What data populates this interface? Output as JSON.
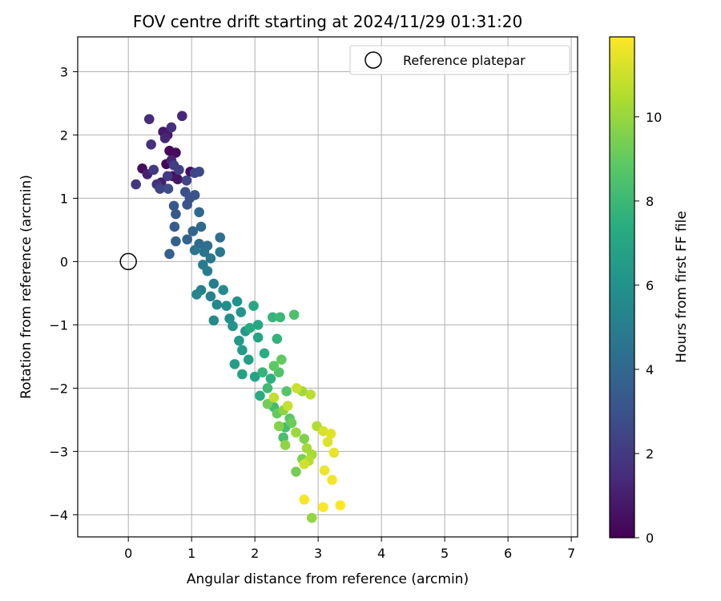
{
  "chart_data": {
    "type": "scatter",
    "title": "FOV centre drift starting at 2024/11/29 01:31:20",
    "xlabel": "Angular distance from reference (arcmin)",
    "ylabel": "Rotation from reference (arcmin)",
    "xlim": [
      -0.8,
      7.1
    ],
    "ylim": [
      -4.35,
      3.55
    ],
    "xticks": [
      0,
      1,
      2,
      3,
      4,
      5,
      6,
      7
    ],
    "yticks": [
      3,
      2,
      1,
      0,
      -1,
      -2,
      -3,
      -4
    ],
    "grid": true,
    "legend": {
      "placement": "top-right",
      "entries": [
        "Reference platepar"
      ]
    },
    "reference_point": {
      "x": 0,
      "y": 0,
      "label": "Reference platepar"
    },
    "colorbar": {
      "label": "Hours from first FF file",
      "range": [
        0,
        11.9
      ],
      "ticks": [
        0,
        2,
        4,
        6,
        8,
        10
      ],
      "colormap": "viridis"
    },
    "series": [
      {
        "points": [
          [
            0.6,
            1.54,
            0.1
          ],
          [
            0.65,
            1.75,
            0.2
          ],
          [
            0.75,
            1.72,
            0.3
          ],
          [
            0.22,
            1.47,
            0.4
          ],
          [
            0.98,
            1.42,
            0.5
          ],
          [
            0.7,
            1.35,
            0.6
          ],
          [
            0.78,
            1.3,
            0.7
          ],
          [
            0.55,
            2.05,
            0.8
          ],
          [
            0.62,
            2.0,
            0.9
          ],
          [
            0.52,
            1.25,
            1.0
          ],
          [
            0.3,
            1.38,
            1.1
          ],
          [
            0.68,
            1.6,
            1.2
          ],
          [
            0.58,
            1.95,
            1.3
          ],
          [
            0.85,
            2.3,
            1.4
          ],
          [
            0.33,
            2.25,
            1.5
          ],
          [
            0.68,
            2.12,
            1.6
          ],
          [
            0.36,
            1.85,
            1.7
          ],
          [
            0.45,
            1.22,
            1.8
          ],
          [
            0.12,
            1.22,
            1.9
          ],
          [
            0.4,
            1.45,
            2.0
          ],
          [
            0.62,
            1.35,
            2.1
          ],
          [
            0.72,
            1.52,
            2.2
          ],
          [
            0.8,
            1.45,
            2.3
          ],
          [
            0.5,
            1.15,
            2.4
          ],
          [
            0.92,
            1.28,
            2.5
          ],
          [
            1.05,
            1.4,
            2.6
          ],
          [
            1.12,
            1.42,
            2.7
          ],
          [
            0.63,
            1.15,
            2.8
          ],
          [
            0.9,
            1.1,
            2.9
          ],
          [
            0.97,
            1.0,
            3.0
          ],
          [
            1.05,
            1.05,
            3.1
          ],
          [
            0.93,
            0.9,
            3.2
          ],
          [
            0.72,
            0.88,
            3.3
          ],
          [
            0.75,
            0.75,
            3.4
          ],
          [
            0.73,
            0.55,
            3.5
          ],
          [
            0.65,
            0.12,
            3.6
          ],
          [
            0.75,
            0.32,
            3.7
          ],
          [
            0.93,
            0.35,
            3.8
          ],
          [
            1.02,
            0.48,
            3.9
          ],
          [
            1.12,
            0.78,
            4.0
          ],
          [
            1.15,
            0.55,
            4.1
          ],
          [
            1.12,
            0.28,
            4.2
          ],
          [
            1.25,
            0.25,
            4.3
          ],
          [
            1.45,
            0.38,
            4.4
          ],
          [
            1.2,
            0.15,
            4.5
          ],
          [
            1.05,
            0.18,
            4.6
          ],
          [
            1.3,
            0.05,
            4.7
          ],
          [
            1.45,
            0.15,
            4.8
          ],
          [
            1.18,
            -0.05,
            4.9
          ],
          [
            1.25,
            -0.15,
            5.0
          ],
          [
            1.35,
            -0.35,
            5.1
          ],
          [
            1.15,
            -0.45,
            5.2
          ],
          [
            1.3,
            -0.55,
            5.3
          ],
          [
            1.08,
            -0.52,
            5.4
          ],
          [
            1.4,
            -0.68,
            5.5
          ],
          [
            1.35,
            -0.93,
            5.6
          ],
          [
            1.5,
            -0.45,
            5.7
          ],
          [
            1.55,
            -0.7,
            5.8
          ],
          [
            1.6,
            -0.9,
            5.9
          ],
          [
            1.72,
            -0.63,
            6.0
          ],
          [
            1.65,
            -1.02,
            6.1
          ],
          [
            1.78,
            -0.8,
            6.2
          ],
          [
            1.85,
            -1.1,
            6.3
          ],
          [
            1.75,
            -1.25,
            6.4
          ],
          [
            1.8,
            -1.4,
            6.5
          ],
          [
            1.68,
            -1.62,
            6.6
          ],
          [
            1.9,
            -1.55,
            6.7
          ],
          [
            1.8,
            -1.78,
            6.8
          ],
          [
            2.0,
            -1.82,
            6.9
          ],
          [
            2.05,
            -1.2,
            7.0
          ],
          [
            1.98,
            -0.7,
            7.1
          ],
          [
            2.05,
            -1.0,
            7.2
          ],
          [
            1.92,
            -1.05,
            7.3
          ],
          [
            2.08,
            -2.12,
            7.4
          ],
          [
            2.15,
            -1.45,
            7.5
          ],
          [
            2.25,
            -1.85,
            7.6
          ],
          [
            2.35,
            -1.22,
            7.7
          ],
          [
            2.12,
            -1.75,
            7.8
          ],
          [
            2.28,
            -0.88,
            7.9
          ],
          [
            2.4,
            -0.88,
            8.0
          ],
          [
            2.2,
            -2.0,
            8.1
          ],
          [
            2.3,
            -2.3,
            8.2
          ],
          [
            2.48,
            -2.62,
            8.3
          ],
          [
            2.45,
            -2.78,
            8.4
          ],
          [
            2.62,
            -0.84,
            8.5
          ],
          [
            2.38,
            -1.75,
            8.6
          ],
          [
            2.5,
            -2.05,
            8.7
          ],
          [
            2.55,
            -2.48,
            8.8
          ],
          [
            2.3,
            -1.65,
            8.9
          ],
          [
            2.42,
            -1.55,
            9.0
          ],
          [
            2.35,
            -2.4,
            9.1
          ],
          [
            2.58,
            -2.55,
            9.2
          ],
          [
            2.2,
            -2.25,
            9.3
          ],
          [
            2.65,
            -3.32,
            9.4
          ],
          [
            2.75,
            -3.12,
            9.5
          ],
          [
            2.78,
            -2.8,
            9.6
          ],
          [
            2.38,
            -2.6,
            9.7
          ],
          [
            2.45,
            -2.35,
            9.8
          ],
          [
            2.48,
            -2.9,
            9.9
          ],
          [
            2.9,
            -4.05,
            10.0
          ],
          [
            2.65,
            -2.7,
            10.1
          ],
          [
            2.75,
            -2.05,
            10.2
          ],
          [
            2.82,
            -2.95,
            10.3
          ],
          [
            2.9,
            -3.05,
            10.4
          ],
          [
            2.98,
            -2.6,
            10.5
          ],
          [
            2.85,
            -3.15,
            10.6
          ],
          [
            2.88,
            -2.1,
            10.7
          ],
          [
            2.3,
            -2.15,
            10.8
          ],
          [
            2.52,
            -2.28,
            10.9
          ],
          [
            2.66,
            -2.0,
            11.0
          ],
          [
            2.78,
            -3.2,
            11.1
          ],
          [
            3.08,
            -2.68,
            11.2
          ],
          [
            3.15,
            -2.85,
            11.3
          ],
          [
            3.2,
            -2.72,
            11.4
          ],
          [
            3.25,
            -3.02,
            11.5
          ],
          [
            3.1,
            -3.3,
            11.6
          ],
          [
            3.22,
            -3.45,
            11.7
          ],
          [
            2.78,
            -3.76,
            11.8
          ],
          [
            3.08,
            -3.88,
            11.85
          ],
          [
            3.35,
            -3.85,
            11.9
          ]
        ]
      }
    ]
  }
}
